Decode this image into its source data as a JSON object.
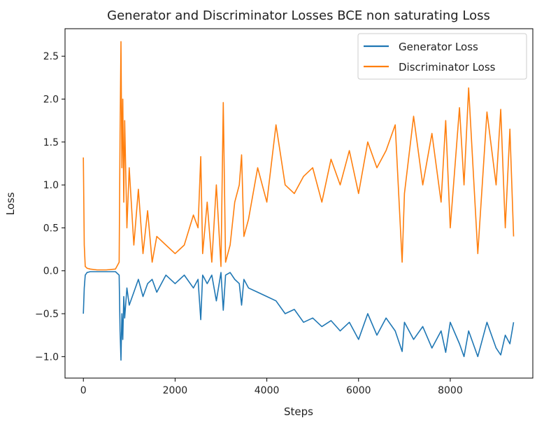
{
  "chart_data": {
    "type": "line",
    "title": "Generator and Discriminator Losses BCE non saturating Loss",
    "xlabel": "Steps",
    "ylabel": "Loss",
    "xlim": [
      -400,
      9800
    ],
    "ylim": [
      -1.25,
      2.82
    ],
    "x_ticks": [
      0,
      2000,
      4000,
      6000,
      8000
    ],
    "x_tick_labels": [
      "0",
      "2000",
      "4000",
      "6000",
      "8000"
    ],
    "y_ticks": [
      -1.0,
      -0.5,
      0.0,
      0.5,
      1.0,
      1.5,
      2.0,
      2.5
    ],
    "y_tick_labels": [
      "−1.0",
      "−0.5",
      "0.0",
      "0.5",
      "1.0",
      "1.5",
      "2.0",
      "2.5"
    ],
    "grid": false,
    "legend_position": "top-right",
    "series": [
      {
        "name": "Generator Loss",
        "color": "#1f77b4",
        "x": [
          0,
          20,
          40,
          80,
          150,
          300,
          500,
          700,
          780,
          800,
          820,
          840,
          860,
          880,
          900,
          950,
          1000,
          1100,
          1200,
          1300,
          1400,
          1500,
          1600,
          1800,
          2000,
          2200,
          2400,
          2500,
          2560,
          2600,
          2700,
          2800,
          2900,
          3000,
          3050,
          3100,
          3200,
          3300,
          3400,
          3450,
          3500,
          3600,
          3800,
          4000,
          4200,
          4400,
          4600,
          4800,
          5000,
          5200,
          5400,
          5600,
          5800,
          6000,
          6200,
          6400,
          6600,
          6800,
          6950,
          7000,
          7200,
          7400,
          7600,
          7800,
          7900,
          8000,
          8200,
          8300,
          8400,
          8600,
          8800,
          9000,
          9100,
          9200,
          9300,
          9380
        ],
        "y": [
          -0.5,
          -0.2,
          -0.05,
          -0.02,
          -0.01,
          -0.01,
          -0.01,
          -0.01,
          -0.05,
          -0.7,
          -1.04,
          -0.5,
          -0.8,
          -0.3,
          -0.55,
          -0.2,
          -0.4,
          -0.25,
          -0.1,
          -0.3,
          -0.15,
          -0.1,
          -0.25,
          -0.05,
          -0.15,
          -0.05,
          -0.2,
          -0.1,
          -0.57,
          -0.05,
          -0.15,
          -0.05,
          -0.35,
          -0.02,
          -0.46,
          -0.05,
          -0.02,
          -0.1,
          -0.15,
          -0.4,
          -0.1,
          -0.2,
          -0.25,
          -0.3,
          -0.35,
          -0.5,
          -0.45,
          -0.6,
          -0.55,
          -0.65,
          -0.58,
          -0.7,
          -0.6,
          -0.8,
          -0.5,
          -0.75,
          -0.55,
          -0.7,
          -0.94,
          -0.6,
          -0.8,
          -0.65,
          -0.9,
          -0.7,
          -0.95,
          -0.6,
          -0.85,
          -1.0,
          -0.7,
          -1.0,
          -0.6,
          -0.9,
          -0.98,
          -0.75,
          -0.85,
          -0.6
        ]
      },
      {
        "name": "Discriminator Loss",
        "color": "#ff7f0e",
        "x": [
          0,
          20,
          40,
          80,
          150,
          300,
          500,
          700,
          780,
          800,
          820,
          840,
          860,
          880,
          900,
          950,
          1000,
          1100,
          1200,
          1300,
          1400,
          1500,
          1600,
          1800,
          2000,
          2200,
          2400,
          2500,
          2560,
          2600,
          2700,
          2800,
          2900,
          3000,
          3050,
          3100,
          3200,
          3300,
          3400,
          3450,
          3500,
          3600,
          3800,
          4000,
          4200,
          4400,
          4600,
          4800,
          5000,
          5200,
          5400,
          5600,
          5800,
          6000,
          6200,
          6400,
          6600,
          6800,
          6950,
          7000,
          7200,
          7400,
          7600,
          7800,
          7900,
          8000,
          8200,
          8300,
          8400,
          8600,
          8800,
          9000,
          9100,
          9200,
          9300,
          9380
        ],
        "y": [
          1.32,
          0.3,
          0.05,
          0.03,
          0.02,
          0.01,
          0.01,
          0.02,
          0.1,
          1.6,
          2.67,
          1.2,
          2.0,
          0.8,
          1.75,
          0.5,
          1.2,
          0.3,
          0.95,
          0.2,
          0.7,
          0.1,
          0.4,
          0.3,
          0.2,
          0.3,
          0.65,
          0.5,
          1.33,
          0.2,
          0.8,
          0.1,
          1.0,
          0.05,
          1.96,
          0.1,
          0.3,
          0.8,
          1.0,
          1.35,
          0.4,
          0.6,
          1.2,
          0.8,
          1.7,
          1.0,
          0.9,
          1.1,
          1.2,
          0.8,
          1.3,
          1.0,
          1.4,
          0.9,
          1.5,
          1.2,
          1.4,
          1.7,
          0.1,
          0.9,
          1.8,
          1.0,
          1.6,
          0.8,
          1.75,
          0.5,
          1.9,
          1.0,
          2.13,
          0.2,
          1.85,
          1.0,
          1.88,
          0.5,
          1.65,
          0.4
        ]
      }
    ]
  }
}
